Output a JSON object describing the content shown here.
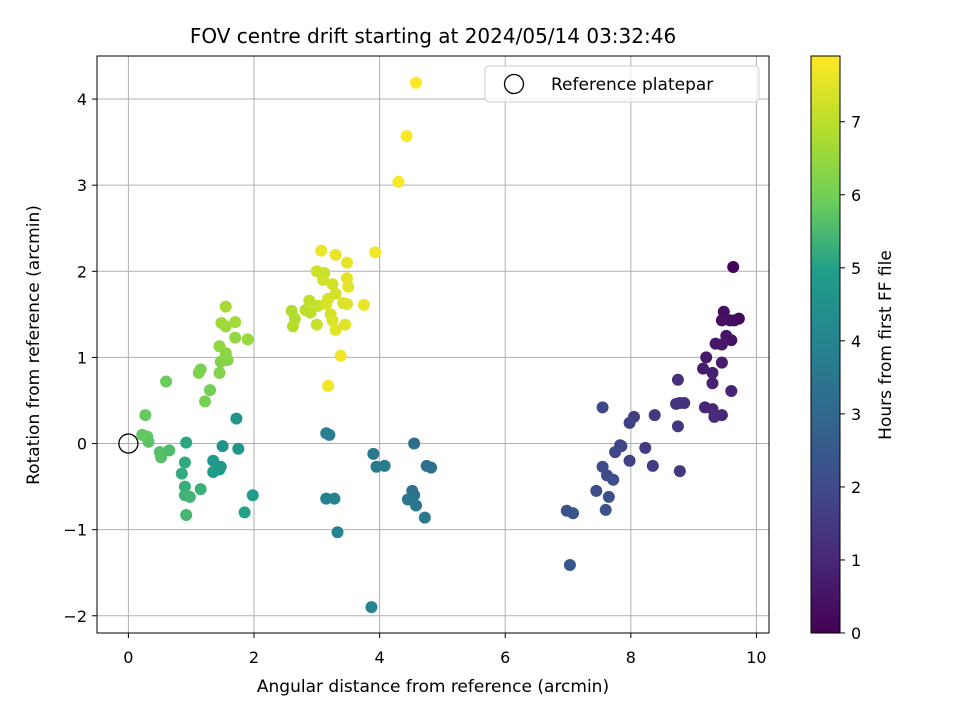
{
  "chart_data": {
    "type": "scatter",
    "title": "FOV centre drift starting at 2024/05/14 03:32:46",
    "xlabel": "Angular distance from reference (arcmin)",
    "ylabel": "Rotation from reference (arcmin)",
    "xlim": [
      -0.5,
      10.2
    ],
    "ylim": [
      -2.2,
      4.5
    ],
    "xticks": [
      0,
      2,
      4,
      6,
      8,
      10
    ],
    "xtick_labels": [
      "0",
      "2",
      "4",
      "6",
      "8",
      "10"
    ],
    "yticks": [
      -2,
      -1,
      0,
      1,
      2,
      3,
      4
    ],
    "ytick_labels": [
      "−2",
      "−1",
      "0",
      "1",
      "2",
      "3",
      "4"
    ],
    "grid": true,
    "legend": {
      "location": "upper-right",
      "entries": [
        "Reference platepar"
      ]
    },
    "reference_point": {
      "x": 0,
      "y": 0,
      "marker": "open-circle"
    },
    "colormap": "viridis",
    "colorbar": {
      "label": "Hours from first FF file",
      "range": [
        0,
        7.9
      ],
      "ticks": [
        0,
        1,
        2,
        3,
        4,
        5,
        6,
        7
      ],
      "tick_labels": [
        "0",
        "1",
        "2",
        "3",
        "4",
        "5",
        "6",
        "7"
      ],
      "colors": [
        "#440154",
        "#482777",
        "#3f4a8a",
        "#31678e",
        "#26838f",
        "#1f9d8a",
        "#6cce5a",
        "#b6de2b",
        "#fee825"
      ]
    },
    "points": [
      {
        "x": 9.63,
        "y": 2.05,
        "t": 0.1
      },
      {
        "x": 9.72,
        "y": 1.45,
        "t": 0.2
      },
      {
        "x": 9.65,
        "y": 1.43,
        "t": 0.25
      },
      {
        "x": 9.58,
        "y": 1.43,
        "t": 0.3
      },
      {
        "x": 9.48,
        "y": 1.53,
        "t": 0.35
      },
      {
        "x": 9.45,
        "y": 1.43,
        "t": 0.4
      },
      {
        "x": 9.6,
        "y": 1.2,
        "t": 0.45
      },
      {
        "x": 9.52,
        "y": 1.25,
        "t": 0.5
      },
      {
        "x": 9.35,
        "y": 1.16,
        "t": 0.55
      },
      {
        "x": 9.45,
        "y": 1.15,
        "t": 0.6
      },
      {
        "x": 9.2,
        "y": 1.0,
        "t": 0.65
      },
      {
        "x": 9.45,
        "y": 0.94,
        "t": 0.7
      },
      {
        "x": 9.15,
        "y": 0.87,
        "t": 0.75
      },
      {
        "x": 9.3,
        "y": 0.82,
        "t": 0.8
      },
      {
        "x": 9.3,
        "y": 0.7,
        "t": 0.85
      },
      {
        "x": 9.6,
        "y": 0.61,
        "t": 0.9
      },
      {
        "x": 9.18,
        "y": 0.42,
        "t": 0.95
      },
      {
        "x": 9.3,
        "y": 0.4,
        "t": 1.0
      },
      {
        "x": 9.45,
        "y": 0.33,
        "t": 1.05
      },
      {
        "x": 9.33,
        "y": 0.31,
        "t": 1.1
      },
      {
        "x": 8.75,
        "y": 0.74,
        "t": 1.2
      },
      {
        "x": 8.85,
        "y": 0.47,
        "t": 1.25
      },
      {
        "x": 8.78,
        "y": 0.47,
        "t": 1.3
      },
      {
        "x": 8.72,
        "y": 0.46,
        "t": 1.35
      },
      {
        "x": 8.75,
        "y": 0.2,
        "t": 1.4
      },
      {
        "x": 8.78,
        "y": -0.32,
        "t": 1.45
      },
      {
        "x": 8.38,
        "y": 0.33,
        "t": 1.5
      },
      {
        "x": 8.23,
        "y": -0.05,
        "t": 1.55
      },
      {
        "x": 8.35,
        "y": -0.26,
        "t": 1.6
      },
      {
        "x": 8.05,
        "y": 0.31,
        "t": 1.65
      },
      {
        "x": 7.98,
        "y": 0.24,
        "t": 1.7
      },
      {
        "x": 7.98,
        "y": -0.2,
        "t": 1.75
      },
      {
        "x": 7.83,
        "y": -0.02,
        "t": 1.8
      },
      {
        "x": 7.85,
        "y": -0.03,
        "t": 1.85
      },
      {
        "x": 7.75,
        "y": -0.1,
        "t": 1.9
      },
      {
        "x": 7.55,
        "y": 0.42,
        "t": 1.95
      },
      {
        "x": 7.55,
        "y": -0.27,
        "t": 2.0
      },
      {
        "x": 7.62,
        "y": -0.37,
        "t": 2.05
      },
      {
        "x": 7.72,
        "y": -0.42,
        "t": 2.1
      },
      {
        "x": 7.45,
        "y": -0.55,
        "t": 2.15
      },
      {
        "x": 7.65,
        "y": -0.62,
        "t": 2.2
      },
      {
        "x": 7.6,
        "y": -0.77,
        "t": 2.25
      },
      {
        "x": 6.98,
        "y": -0.78,
        "t": 2.3
      },
      {
        "x": 7.08,
        "y": -0.81,
        "t": 2.35
      },
      {
        "x": 7.03,
        "y": -1.41,
        "t": 2.4
      },
      {
        "x": 4.55,
        "y": 0.0,
        "t": 3.2
      },
      {
        "x": 4.75,
        "y": -0.26,
        "t": 3.25
      },
      {
        "x": 4.82,
        "y": -0.28,
        "t": 3.3
      },
      {
        "x": 4.52,
        "y": -0.55,
        "t": 3.35
      },
      {
        "x": 4.55,
        "y": -0.6,
        "t": 3.4
      },
      {
        "x": 4.45,
        "y": -0.65,
        "t": 3.45
      },
      {
        "x": 4.58,
        "y": -0.72,
        "t": 3.5
      },
      {
        "x": 4.72,
        "y": -0.86,
        "t": 3.55
      },
      {
        "x": 3.9,
        "y": -0.12,
        "t": 3.6
      },
      {
        "x": 3.95,
        "y": -0.27,
        "t": 3.65
      },
      {
        "x": 4.08,
        "y": -0.26,
        "t": 3.7
      },
      {
        "x": 3.15,
        "y": 0.12,
        "t": 3.75
      },
      {
        "x": 3.2,
        "y": 0.1,
        "t": 3.8
      },
      {
        "x": 3.15,
        "y": -0.64,
        "t": 3.85
      },
      {
        "x": 3.28,
        "y": -0.64,
        "t": 3.9
      },
      {
        "x": 3.33,
        "y": -1.03,
        "t": 3.95
      },
      {
        "x": 3.87,
        "y": -1.9,
        "t": 4.0
      },
      {
        "x": 1.72,
        "y": 0.29,
        "t": 4.6
      },
      {
        "x": 1.5,
        "y": -0.03,
        "t": 4.65
      },
      {
        "x": 1.75,
        "y": -0.06,
        "t": 4.7
      },
      {
        "x": 1.35,
        "y": -0.2,
        "t": 4.75
      },
      {
        "x": 1.47,
        "y": -0.27,
        "t": 4.8
      },
      {
        "x": 1.45,
        "y": -0.3,
        "t": 4.85
      },
      {
        "x": 1.35,
        "y": -0.33,
        "t": 4.9
      },
      {
        "x": 1.98,
        "y": -0.6,
        "t": 4.95
      },
      {
        "x": 1.85,
        "y": -0.8,
        "t": 5.0
      },
      {
        "x": 0.92,
        "y": 0.01,
        "t": 5.1
      },
      {
        "x": 0.9,
        "y": -0.22,
        "t": 5.15
      },
      {
        "x": 0.85,
        "y": -0.35,
        "t": 5.2
      },
      {
        "x": 0.9,
        "y": -0.5,
        "t": 5.25
      },
      {
        "x": 1.15,
        "y": -0.53,
        "t": 5.3
      },
      {
        "x": 0.9,
        "y": -0.6,
        "t": 5.35
      },
      {
        "x": 0.98,
        "y": -0.62,
        "t": 5.4
      },
      {
        "x": 0.92,
        "y": -0.83,
        "t": 5.45
      },
      {
        "x": 0.65,
        "y": -0.08,
        "t": 5.55
      },
      {
        "x": 0.5,
        "y": -0.1,
        "t": 5.6
      },
      {
        "x": 0.52,
        "y": -0.16,
        "t": 5.65
      },
      {
        "x": 0.32,
        "y": 0.02,
        "t": 5.7
      },
      {
        "x": 0.3,
        "y": 0.08,
        "t": 5.75
      },
      {
        "x": 0.22,
        "y": 0.1,
        "t": 5.8
      },
      {
        "x": 0.27,
        "y": 0.33,
        "t": 5.85
      },
      {
        "x": 0.6,
        "y": 0.72,
        "t": 5.9
      },
      {
        "x": 1.3,
        "y": 0.62,
        "t": 6.0
      },
      {
        "x": 1.22,
        "y": 0.49,
        "t": 6.05
      },
      {
        "x": 1.15,
        "y": 0.86,
        "t": 6.1
      },
      {
        "x": 1.12,
        "y": 0.82,
        "t": 6.15
      },
      {
        "x": 1.45,
        "y": 0.82,
        "t": 6.2
      },
      {
        "x": 1.47,
        "y": 0.95,
        "t": 6.25
      },
      {
        "x": 1.58,
        "y": 0.97,
        "t": 6.3
      },
      {
        "x": 1.55,
        "y": 1.05,
        "t": 6.35
      },
      {
        "x": 1.45,
        "y": 1.13,
        "t": 6.4
      },
      {
        "x": 1.7,
        "y": 1.23,
        "t": 6.45
      },
      {
        "x": 1.9,
        "y": 1.21,
        "t": 6.5
      },
      {
        "x": 1.55,
        "y": 1.36,
        "t": 6.55
      },
      {
        "x": 1.48,
        "y": 1.4,
        "t": 6.6
      },
      {
        "x": 1.7,
        "y": 1.41,
        "t": 6.65
      },
      {
        "x": 1.55,
        "y": 1.59,
        "t": 6.7
      },
      {
        "x": 2.6,
        "y": 1.54,
        "t": 6.8
      },
      {
        "x": 2.65,
        "y": 1.45,
        "t": 6.85
      },
      {
        "x": 2.62,
        "y": 1.36,
        "t": 6.9
      },
      {
        "x": 2.82,
        "y": 1.55,
        "t": 6.95
      },
      {
        "x": 2.9,
        "y": 1.52,
        "t": 7.0
      },
      {
        "x": 2.88,
        "y": 1.66,
        "t": 7.05
      },
      {
        "x": 3.02,
        "y": 1.6,
        "t": 7.1
      },
      {
        "x": 3.0,
        "y": 1.38,
        "t": 7.15
      },
      {
        "x": 3.12,
        "y": 1.98,
        "t": 7.2
      },
      {
        "x": 3.0,
        "y": 2.0,
        "t": 7.22
      },
      {
        "x": 3.1,
        "y": 1.9,
        "t": 7.25
      },
      {
        "x": 3.25,
        "y": 1.85,
        "t": 7.28
      },
      {
        "x": 3.18,
        "y": 1.68,
        "t": 7.3
      },
      {
        "x": 3.3,
        "y": 1.74,
        "t": 7.32
      },
      {
        "x": 3.22,
        "y": 1.5,
        "t": 7.35
      },
      {
        "x": 3.15,
        "y": 1.62,
        "t": 7.38
      },
      {
        "x": 3.25,
        "y": 1.43,
        "t": 7.4
      },
      {
        "x": 3.42,
        "y": 1.63,
        "t": 7.42
      },
      {
        "x": 3.48,
        "y": 1.62,
        "t": 7.45
      },
      {
        "x": 3.45,
        "y": 1.38,
        "t": 7.48
      },
      {
        "x": 3.3,
        "y": 1.32,
        "t": 7.5
      },
      {
        "x": 3.5,
        "y": 1.82,
        "t": 7.52
      },
      {
        "x": 3.48,
        "y": 1.92,
        "t": 7.55
      },
      {
        "x": 3.48,
        "y": 2.1,
        "t": 7.58
      },
      {
        "x": 3.3,
        "y": 2.19,
        "t": 7.6
      },
      {
        "x": 3.07,
        "y": 2.24,
        "t": 7.62
      },
      {
        "x": 3.75,
        "y": 1.61,
        "t": 7.65
      },
      {
        "x": 3.38,
        "y": 1.02,
        "t": 7.68
      },
      {
        "x": 3.18,
        "y": 0.67,
        "t": 7.7
      },
      {
        "x": 3.93,
        "y": 2.22,
        "t": 7.75
      },
      {
        "x": 4.3,
        "y": 3.04,
        "t": 7.8
      },
      {
        "x": 4.43,
        "y": 3.57,
        "t": 7.85
      },
      {
        "x": 4.58,
        "y": 4.19,
        "t": 7.9
      }
    ]
  }
}
